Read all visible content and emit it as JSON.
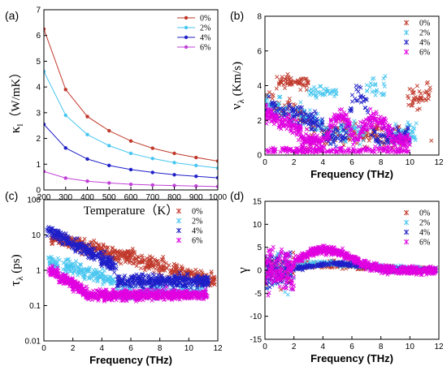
{
  "chart_data": [
    {
      "panel_label": "(a)",
      "type": "line",
      "xlabel": "Temperature（K）",
      "ylabel": "κl（W/mK）",
      "ylabel_main": "κ",
      "ylabel_sub": "l",
      "ylabel_rest": "（W/mK）",
      "xlim": [
        200,
        1000
      ],
      "ylim": [
        0,
        7
      ],
      "x_ticks": [
        200,
        300,
        400,
        500,
        600,
        700,
        800,
        900,
        1000
      ],
      "y_ticks": [
        0,
        1,
        2,
        3,
        4,
        5,
        6,
        7
      ],
      "legend_position": "top-right",
      "x": [
        200,
        300,
        400,
        500,
        600,
        700,
        800,
        900,
        1000
      ],
      "series": [
        {
          "name": "0%",
          "color": "#c0392b",
          "values": [
            6.25,
            3.9,
            2.85,
            2.3,
            1.9,
            1.62,
            1.42,
            1.26,
            1.12
          ]
        },
        {
          "name": "2%",
          "color": "#48c6f0",
          "values": [
            4.6,
            2.9,
            2.15,
            1.72,
            1.42,
            1.22,
            1.06,
            0.95,
            0.85
          ]
        },
        {
          "name": "4%",
          "color": "#1f1fc8",
          "values": [
            2.55,
            1.63,
            1.2,
            0.95,
            0.79,
            0.68,
            0.59,
            0.53,
            0.47
          ]
        },
        {
          "name": "6%",
          "color": "#c040d8",
          "values": [
            0.72,
            0.46,
            0.34,
            0.27,
            0.22,
            0.19,
            0.17,
            0.15,
            0.13
          ]
        }
      ]
    },
    {
      "panel_label": "(b)",
      "type": "scatter",
      "xlabel": "Frequency (THz)",
      "ylabel": "νλ (Km/s)",
      "ylabel_main": "ν",
      "ylabel_sub": "λ",
      "ylabel_rest": " (Km/s)",
      "xlim": [
        0,
        12
      ],
      "ylim": [
        0,
        8
      ],
      "x_ticks": [
        0,
        2,
        4,
        6,
        8,
        10,
        12
      ],
      "y_ticks": [
        0,
        2,
        4,
        6,
        8
      ],
      "legend_position": "top-right",
      "series": [
        {
          "name": "0%",
          "color": "#c0392b"
        },
        {
          "name": "2%",
          "color": "#48c6f0"
        },
        {
          "name": "4%",
          "color": "#1f1fc8"
        },
        {
          "name": "6%",
          "color": "#e000e0"
        }
      ]
    },
    {
      "panel_label": "(c)",
      "type": "scatter",
      "xlabel": "Frequency (THz)",
      "ylabel": "τλ (ps)",
      "ylabel_main": "τ",
      "ylabel_sub": "λ",
      "ylabel_rest": " (ps)",
      "xlim": [
        0,
        12
      ],
      "ylim": [
        0.01,
        100
      ],
      "y_scale": "log",
      "x_ticks": [
        0,
        2,
        4,
        6,
        8,
        10,
        12
      ],
      "y_ticks": [
        0.01,
        0.1,
        1,
        10,
        100
      ],
      "y_tick_labels": [
        "0.01",
        "0.1",
        "1",
        "10",
        "100"
      ],
      "legend_position": "top-right",
      "series": [
        {
          "name": "0%",
          "color": "#c0392b"
        },
        {
          "name": "2%",
          "color": "#48c6f0"
        },
        {
          "name": "4%",
          "color": "#1f1fc8"
        },
        {
          "name": "6%",
          "color": "#e000e0"
        }
      ]
    },
    {
      "panel_label": "(d)",
      "type": "scatter",
      "xlabel": "Frequency (THz)",
      "ylabel": "γ",
      "ylabel_main": "γ",
      "ylabel_sub": "",
      "ylabel_rest": "",
      "xlim": [
        0,
        12
      ],
      "ylim": [
        -15,
        15
      ],
      "x_ticks": [
        0,
        2,
        4,
        6,
        8,
        10,
        12
      ],
      "y_ticks": [
        -15,
        -10,
        -5,
        0,
        5,
        10,
        15
      ],
      "legend_position": "top-right",
      "series": [
        {
          "name": "0%",
          "color": "#c0392b"
        },
        {
          "name": "2%",
          "color": "#48c6f0"
        },
        {
          "name": "4%",
          "color": "#1f1fc8"
        },
        {
          "name": "6%",
          "color": "#e000e0"
        }
      ]
    }
  ]
}
